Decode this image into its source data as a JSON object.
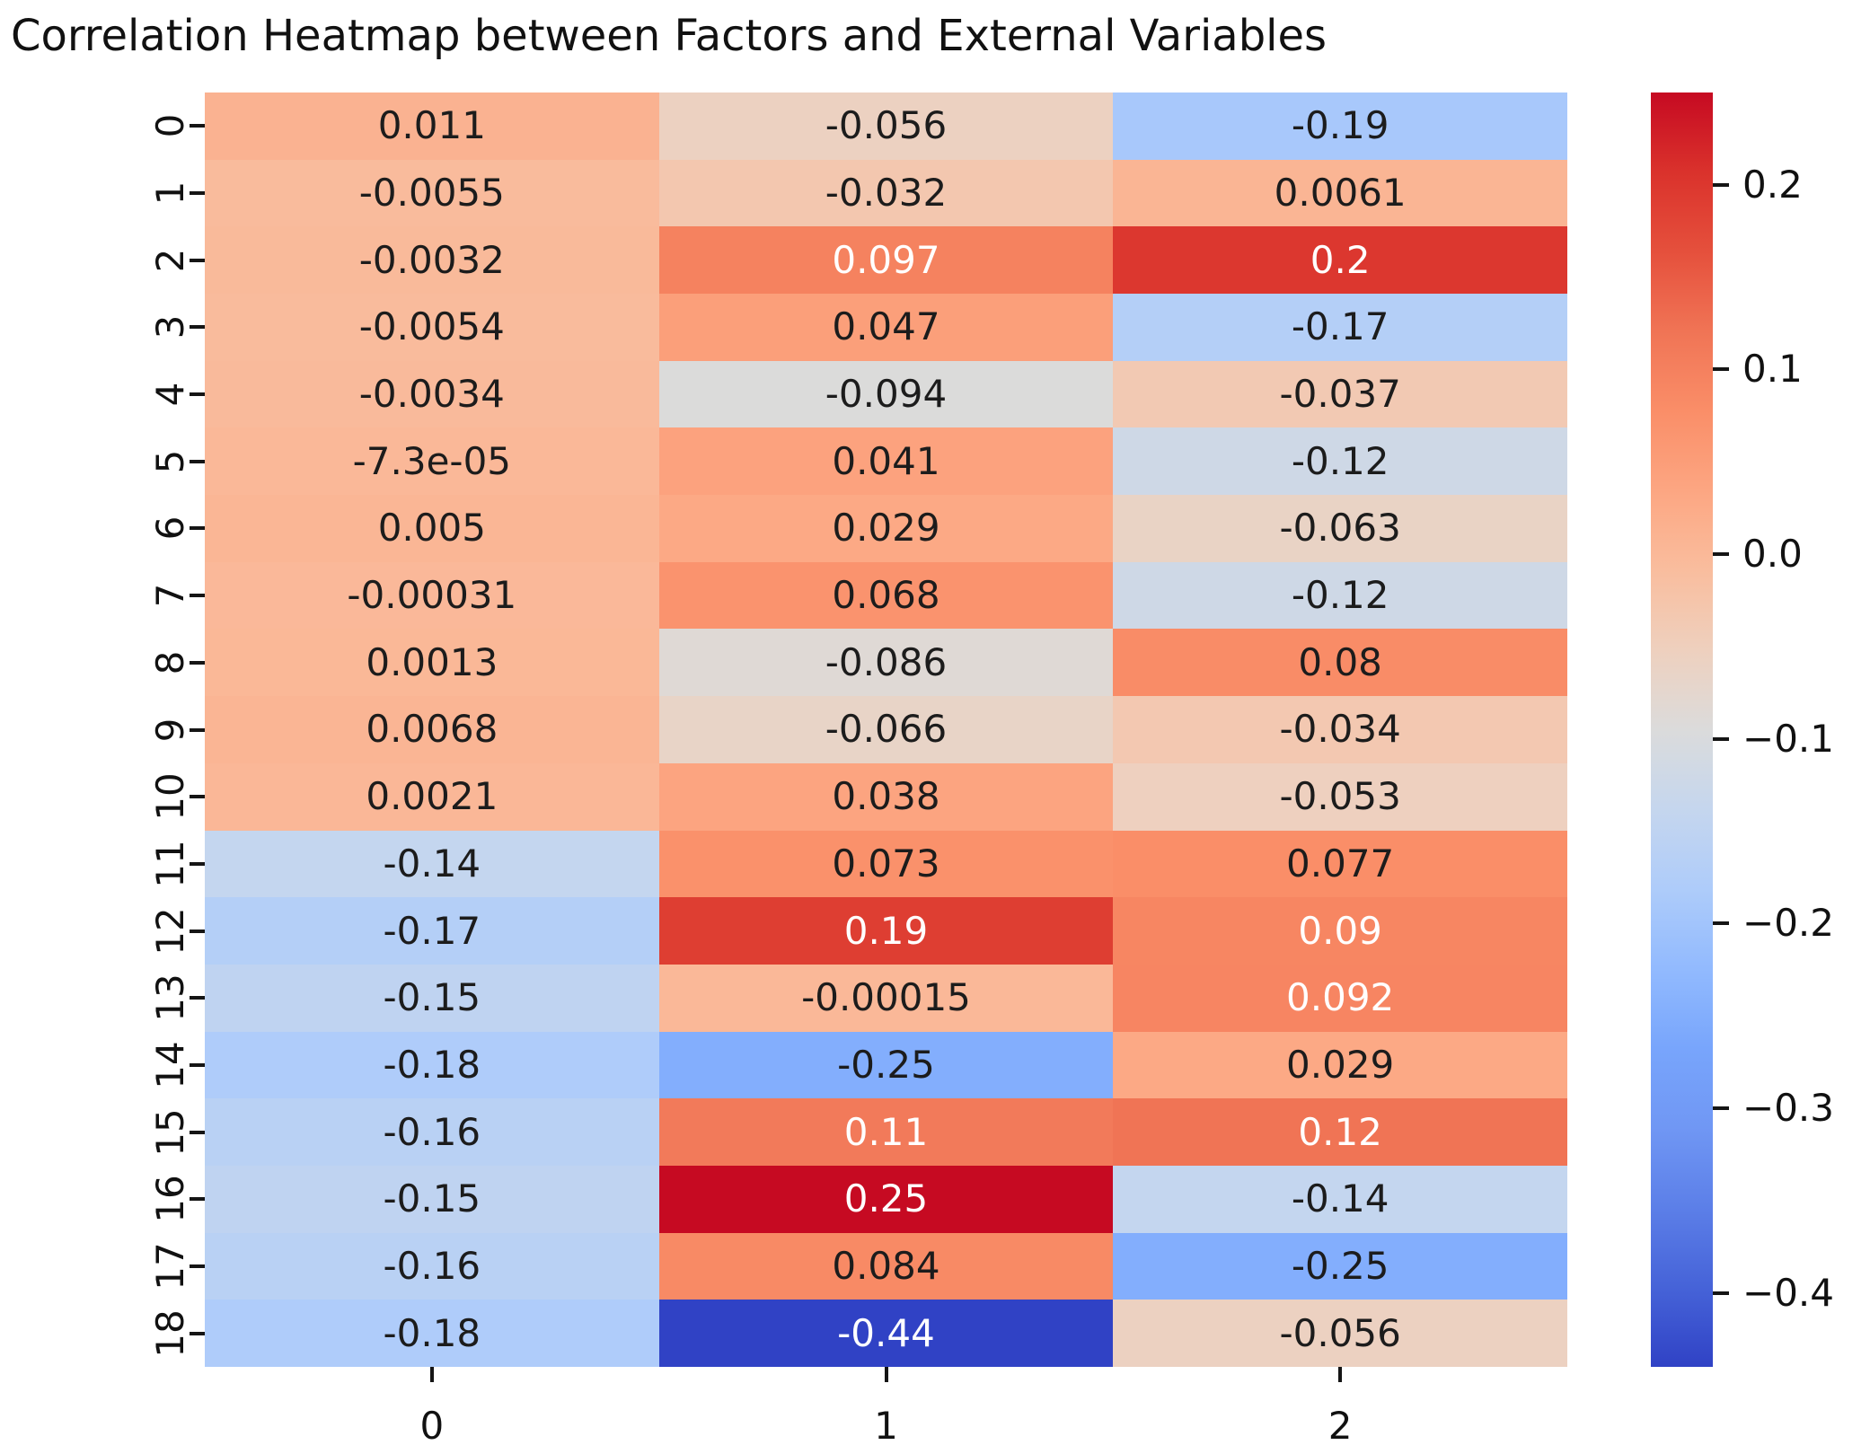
{
  "title": "Correlation Heatmap between Factors and External Variables",
  "colors": {
    "background": "#ffffff",
    "annot_dark": "#1c1c1c",
    "annot_white": "#ffffff",
    "tick": "#151515"
  },
  "chart_data": {
    "type": "heatmap",
    "title": "Correlation Heatmap between Factors and External Variables",
    "xlabel": "",
    "ylabel": "",
    "row_labels": [
      "0",
      "1",
      "2",
      "3",
      "4",
      "5",
      "6",
      "7",
      "8",
      "9",
      "10",
      "11",
      "12",
      "13",
      "14",
      "15",
      "16",
      "17",
      "18"
    ],
    "col_labels": [
      "0",
      "1",
      "2"
    ],
    "cells": [
      [
        "0.011",
        "-0.056",
        "-0.19"
      ],
      [
        "-0.0055",
        "-0.032",
        "0.0061"
      ],
      [
        "-0.0032",
        "0.097",
        "0.2"
      ],
      [
        "-0.0054",
        "0.047",
        "-0.17"
      ],
      [
        "-0.0034",
        "-0.094",
        "-0.037"
      ],
      [
        "-7.3e-05",
        "0.041",
        "-0.12"
      ],
      [
        "0.005",
        "0.029",
        "-0.063"
      ],
      [
        "-0.00031",
        "0.068",
        "-0.12"
      ],
      [
        "0.0013",
        "-0.086",
        "0.08"
      ],
      [
        "0.0068",
        "-0.066",
        "-0.034"
      ],
      [
        "0.0021",
        "0.038",
        "-0.053"
      ],
      [
        "-0.14",
        "0.073",
        "0.077"
      ],
      [
        "-0.17",
        "0.19",
        "0.09"
      ],
      [
        "-0.15",
        "-0.00015",
        "0.092"
      ],
      [
        "-0.18",
        "-0.25",
        "0.029"
      ],
      [
        "-0.16",
        "0.11",
        "0.12"
      ],
      [
        "-0.15",
        "0.25",
        "-0.14"
      ],
      [
        "-0.16",
        "0.084",
        "-0.25"
      ],
      [
        "-0.18",
        "-0.44",
        "-0.056"
      ]
    ],
    "white_text_cells": [
      [
        2,
        1
      ],
      [
        2,
        2
      ],
      [
        12,
        1
      ],
      [
        12,
        2
      ],
      [
        13,
        2
      ],
      [
        15,
        1
      ],
      [
        15,
        2
      ],
      [
        16,
        1
      ],
      [
        18,
        1
      ]
    ],
    "colormap": "coolwarm",
    "vmin": -0.44,
    "vmax": 0.25,
    "grid": false,
    "legend_position": "right",
    "colorbar_ticks": [
      {
        "label": "0.2",
        "value": 0.2
      },
      {
        "label": "0.1",
        "value": 0.1
      },
      {
        "label": "0.0",
        "value": 0.0
      },
      {
        "label": "−0.1",
        "value": -0.1
      },
      {
        "label": "−0.2",
        "value": -0.2
      },
      {
        "label": "−0.3",
        "value": -0.3
      },
      {
        "label": "−0.4",
        "value": -0.4
      }
    ]
  }
}
